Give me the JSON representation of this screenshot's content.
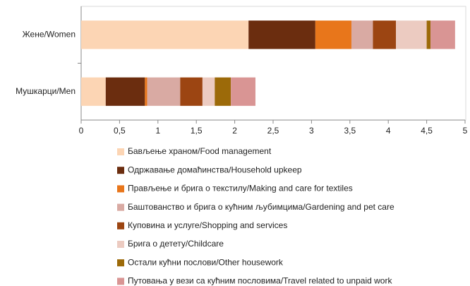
{
  "chart_data": {
    "type": "stacked-barh",
    "categories": [
      "Жене/Women",
      "Мушкарци/Men"
    ],
    "series": [
      {
        "name": "Бављење храном/Food management",
        "color": "#fcd5b4",
        "values": [
          2.18,
          0.32
        ]
      },
      {
        "name": "Одржавање домаћинства/Household upkeep",
        "color": "#6b2d0f",
        "values": [
          0.87,
          0.51
        ]
      },
      {
        "name": "Прављење и брига о текстилу/Making and care for textiles",
        "color": "#e8761b",
        "values": [
          0.47,
          0.03
        ]
      },
      {
        "name": "Баштованство и брига о кућним љубимцима/Gardening and pet care",
        "color": "#d9aaa3",
        "values": [
          0.28,
          0.43
        ]
      },
      {
        "name": "Куповина и услуге/Shopping and services",
        "color": "#9c4512",
        "values": [
          0.3,
          0.29
        ]
      },
      {
        "name": "Брига о детету/Childcare",
        "color": "#eccbc1",
        "values": [
          0.4,
          0.16
        ]
      },
      {
        "name": "Остали кућни послови/Other housework",
        "color": "#9c6a09",
        "values": [
          0.05,
          0.21
        ]
      },
      {
        "name": "Путовања у вези са кућним пословима/Travel related to unpaid work",
        "color": "#d99594",
        "values": [
          0.32,
          0.32
        ]
      }
    ],
    "xlim": [
      0,
      5
    ],
    "xticks": [
      0,
      {
        "value": 0.5,
        "label": "0,5"
      },
      1,
      {
        "value": 1.5,
        "label": "1,5"
      },
      2,
      {
        "value": 2.5,
        "label": "2,5"
      },
      3,
      {
        "value": 3.5,
        "label": "3,5"
      },
      4,
      {
        "value": 4.5,
        "label": "4,5"
      },
      5
    ]
  }
}
